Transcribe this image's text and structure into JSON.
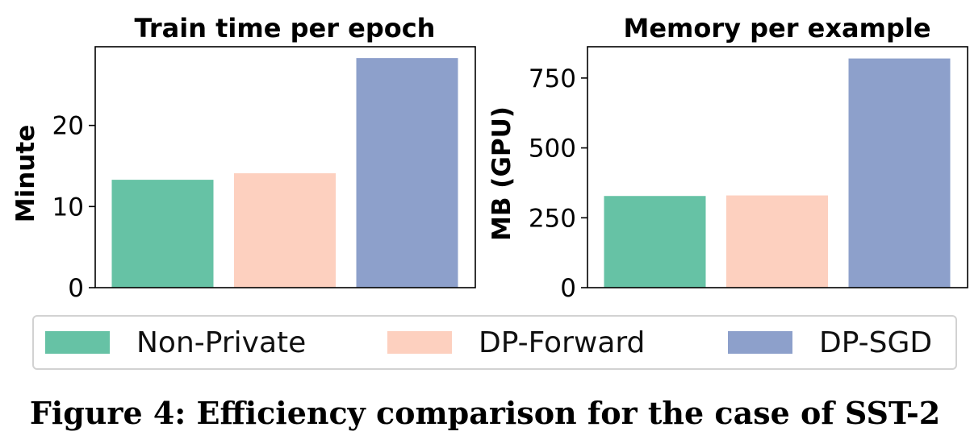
{
  "chart_data": [
    {
      "type": "bar",
      "title": "Train time per epoch",
      "ylabel": "Minute",
      "xlabel": "",
      "categories": [
        "Non-Private",
        "DP-Forward",
        "DP-SGD"
      ],
      "values": [
        13.3,
        14.1,
        28.3
      ],
      "ylim": [
        0,
        29.7
      ],
      "yticks": [
        0,
        10,
        20
      ],
      "grid": false,
      "colors": [
        "#66c2a5",
        "#fdd0bf",
        "#8da0cb"
      ]
    },
    {
      "type": "bar",
      "title": "Memory per example",
      "ylabel": "MB (GPU)",
      "xlabel": "",
      "categories": [
        "Non-Private",
        "DP-Forward",
        "DP-SGD"
      ],
      "values": [
        328,
        330,
        820
      ],
      "ylim": [
        0,
        862
      ],
      "yticks": [
        0,
        250,
        500,
        750
      ],
      "grid": false,
      "colors": [
        "#66c2a5",
        "#fdd0bf",
        "#8da0cb"
      ]
    }
  ],
  "legend": {
    "placement": "bottom",
    "items": [
      {
        "label": "Non-Private",
        "color": "#66c2a5"
      },
      {
        "label": "DP-Forward",
        "color": "#fdd0bf"
      },
      {
        "label": "DP-SGD",
        "color": "#8da0cb"
      }
    ]
  },
  "caption": "Figure 4: Efficiency comparison for the case of SST-2"
}
